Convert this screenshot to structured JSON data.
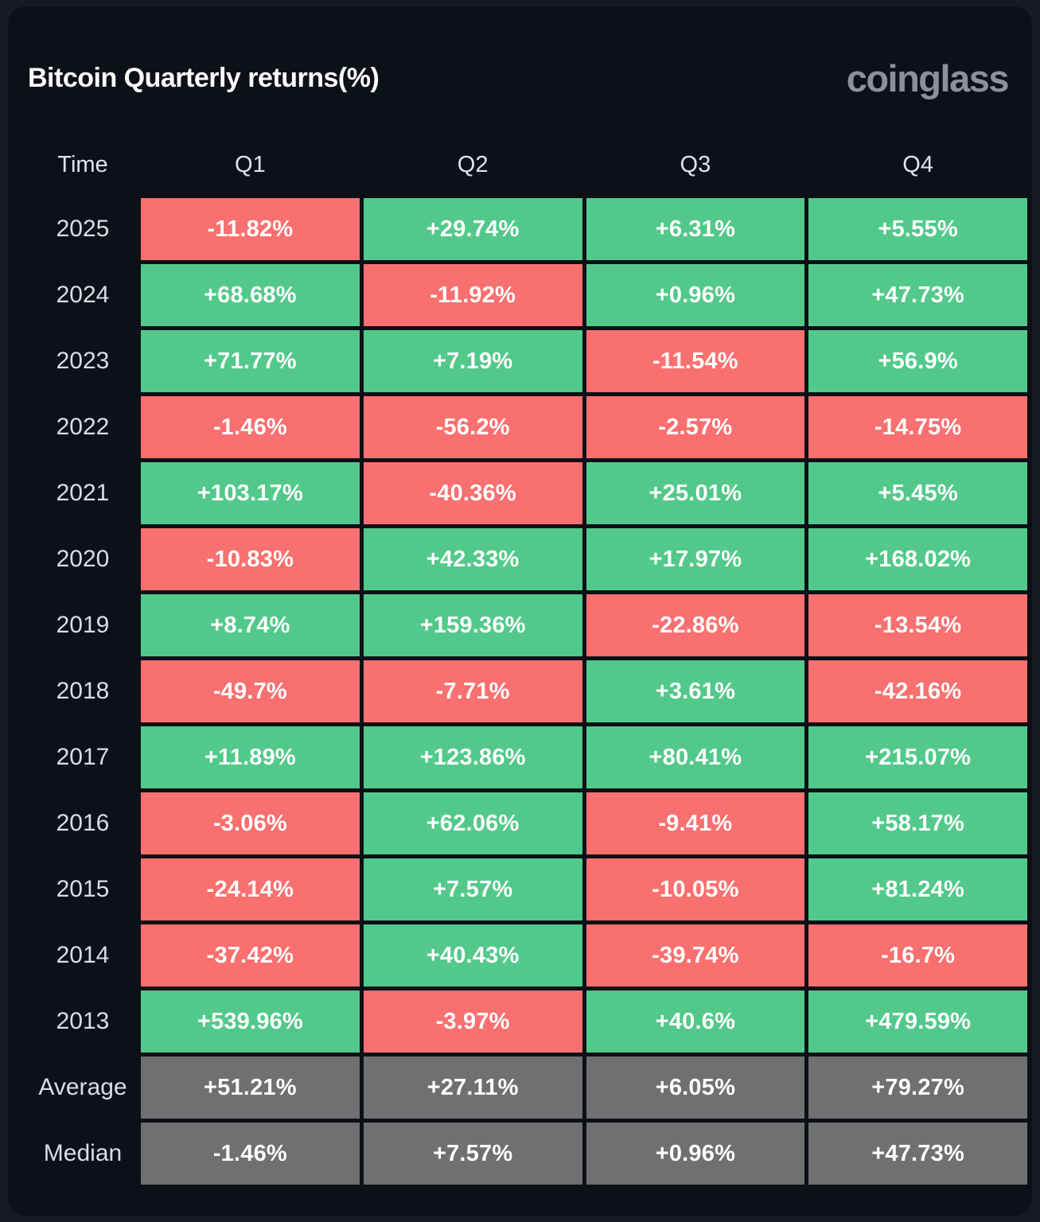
{
  "header": {
    "title": "Bitcoin Quarterly returns(%)",
    "logo_text": "coinglass"
  },
  "colors": {
    "green": "#52c98a",
    "red": "#f97070",
    "gray": "#6e7071",
    "panel_bg": "#0d1017",
    "outer_bg": "#171a20",
    "title_text": "#ffffff",
    "logo_text": "#8a919d",
    "header_text": "#dfe3ea",
    "label_text": "#d9dde5",
    "cell_text": "#ffffff"
  },
  "table": {
    "headers": [
      "Time",
      "Q1",
      "Q2",
      "Q3",
      "Q4"
    ],
    "rows": [
      {
        "label": "2025",
        "type": "year",
        "cells": [
          "-11.82%",
          "+29.74%",
          "+6.31%",
          "+5.55%"
        ]
      },
      {
        "label": "2024",
        "type": "year",
        "cells": [
          "+68.68%",
          "-11.92%",
          "+0.96%",
          "+47.73%"
        ]
      },
      {
        "label": "2023",
        "type": "year",
        "cells": [
          "+71.77%",
          "+7.19%",
          "-11.54%",
          "+56.9%"
        ]
      },
      {
        "label": "2022",
        "type": "year",
        "cells": [
          "-1.46%",
          "-56.2%",
          "-2.57%",
          "-14.75%"
        ]
      },
      {
        "label": "2021",
        "type": "year",
        "cells": [
          "+103.17%",
          "-40.36%",
          "+25.01%",
          "+5.45%"
        ]
      },
      {
        "label": "2020",
        "type": "year",
        "cells": [
          "-10.83%",
          "+42.33%",
          "+17.97%",
          "+168.02%"
        ]
      },
      {
        "label": "2019",
        "type": "year",
        "cells": [
          "+8.74%",
          "+159.36%",
          "-22.86%",
          "-13.54%"
        ]
      },
      {
        "label": "2018",
        "type": "year",
        "cells": [
          "-49.7%",
          "-7.71%",
          "+3.61%",
          "-42.16%"
        ]
      },
      {
        "label": "2017",
        "type": "year",
        "cells": [
          "+11.89%",
          "+123.86%",
          "+80.41%",
          "+215.07%"
        ]
      },
      {
        "label": "2016",
        "type": "year",
        "cells": [
          "-3.06%",
          "+62.06%",
          "-9.41%",
          "+58.17%"
        ]
      },
      {
        "label": "2015",
        "type": "year",
        "cells": [
          "-24.14%",
          "+7.57%",
          "-10.05%",
          "+81.24%"
        ]
      },
      {
        "label": "2014",
        "type": "year",
        "cells": [
          "-37.42%",
          "+40.43%",
          "-39.74%",
          "-16.7%"
        ]
      },
      {
        "label": "2013",
        "type": "year",
        "cells": [
          "+539.96%",
          "-3.97%",
          "+40.6%",
          "+479.59%"
        ]
      },
      {
        "label": "Average",
        "type": "summary",
        "cells": [
          "+51.21%",
          "+27.11%",
          "+6.05%",
          "+79.27%"
        ]
      },
      {
        "label": "Median",
        "type": "summary",
        "cells": [
          "-1.46%",
          "+7.57%",
          "+0.96%",
          "+47.73%"
        ]
      }
    ]
  },
  "chart_data": {
    "type": "heatmap",
    "title": "Bitcoin Quarterly returns(%)",
    "columns": [
      "Q1",
      "Q2",
      "Q3",
      "Q4"
    ],
    "rows": [
      "2025",
      "2024",
      "2023",
      "2022",
      "2021",
      "2020",
      "2019",
      "2018",
      "2017",
      "2016",
      "2015",
      "2014",
      "2013",
      "Average",
      "Median"
    ],
    "values": [
      [
        -11.82,
        29.74,
        6.31,
        5.55
      ],
      [
        68.68,
        -11.92,
        0.96,
        47.73
      ],
      [
        71.77,
        7.19,
        -11.54,
        56.9
      ],
      [
        -1.46,
        -56.2,
        -2.57,
        -14.75
      ],
      [
        103.17,
        -40.36,
        25.01,
        5.45
      ],
      [
        -10.83,
        42.33,
        17.97,
        168.02
      ],
      [
        8.74,
        159.36,
        -22.86,
        -13.54
      ],
      [
        -49.7,
        -7.71,
        3.61,
        -42.16
      ],
      [
        11.89,
        123.86,
        80.41,
        215.07
      ],
      [
        -3.06,
        62.06,
        -9.41,
        58.17
      ],
      [
        -24.14,
        7.57,
        -10.05,
        81.24
      ],
      [
        -37.42,
        40.43,
        -39.74,
        -16.7
      ],
      [
        539.96,
        -3.97,
        40.6,
        479.59
      ],
      [
        51.21,
        27.11,
        6.05,
        79.27
      ],
      [
        -1.46,
        7.57,
        0.96,
        47.73
      ]
    ],
    "legend": "cell color: green = positive return, red = negative return, gray = summary rows (Average/Median)",
    "units": "percent"
  }
}
